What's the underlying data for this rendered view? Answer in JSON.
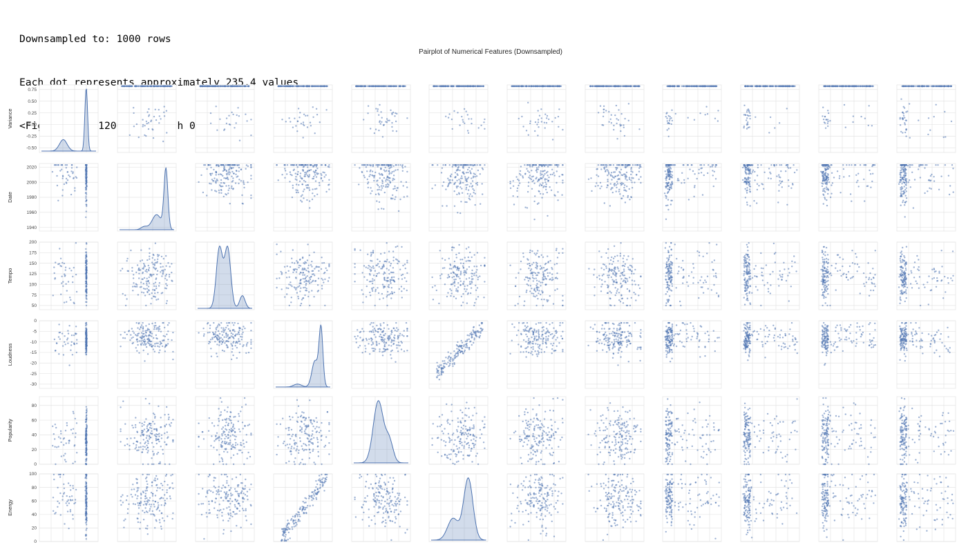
{
  "output": {
    "lines": [
      "Downsampled to: 1000 rows",
      "Each dot represents approximately 235.4 values",
      "<Figure size 1200x1000 with 0 Axes>"
    ]
  },
  "chart_data": {
    "type": "scatter",
    "kind": "pairplot",
    "title": "Pairplot of Numerical Features (Downsampled)",
    "diagonal": "kde",
    "color": "#4c72b0",
    "grid": true,
    "n_rows": 6,
    "n_cols": 12,
    "row_variables": [
      {
        "name": "Variance",
        "range": [
          -0.6,
          0.85
        ],
        "ticks": [
          "0.75",
          "0.50",
          "0.25",
          "0.00",
          "-0.25",
          "-0.50"
        ],
        "tick_values": [
          0.75,
          0.5,
          0.25,
          0,
          -0.25,
          -0.5
        ]
      },
      {
        "name": "Date",
        "range": [
          1935,
          2025
        ],
        "ticks": [
          "2020",
          "2000",
          "1980",
          "1960",
          "1940"
        ],
        "tick_values": [
          2020,
          2000,
          1980,
          1960,
          1940
        ]
      },
      {
        "name": "Tempo",
        "range": [
          40,
          200
        ],
        "ticks": [
          "200",
          "175",
          "150",
          "125",
          "100",
          "75",
          "50"
        ],
        "tick_values": [
          200,
          175,
          150,
          125,
          100,
          75,
          50
        ]
      },
      {
        "name": "Loudness",
        "range": [
          -32,
          0
        ],
        "ticks": [
          "0",
          "-5",
          "-10",
          "-15",
          "-20",
          "-25",
          "-30"
        ],
        "tick_values": [
          0,
          -5,
          -10,
          -15,
          -20,
          -25,
          -30
        ]
      },
      {
        "name": "Popularity",
        "range": [
          0,
          92
        ],
        "ticks": [
          "80",
          "60",
          "40",
          "20",
          "0"
        ],
        "tick_values": [
          80,
          60,
          40,
          20,
          0
        ]
      },
      {
        "name": "Energy",
        "range": [
          0,
          100
        ],
        "ticks": [
          "100",
          "80",
          "60",
          "40",
          "20",
          "0"
        ],
        "tick_values": [
          100,
          80,
          60,
          40,
          20,
          0
        ]
      }
    ],
    "notable_relationships": [
      {
        "x": "Loudness",
        "y": "Energy",
        "relationship": "strong positive"
      },
      {
        "x": "Energy",
        "y": "Loudness",
        "relationship": "strong positive"
      }
    ]
  }
}
